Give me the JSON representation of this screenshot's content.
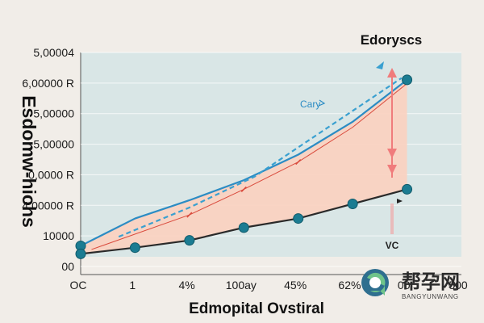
{
  "chart_data": {
    "type": "line",
    "title": "Edorysсs",
    "xlabel": "Edmopital Ovstiral",
    "ylabel": "Esdomw-hiohs",
    "x_tick_labels": [
      "OC",
      "1",
      "4%",
      "100ay",
      "45%",
      "62%",
      "00",
      "500"
    ],
    "y_tick_labels": [
      "5,00004",
      "6,00000 R",
      "5,00000",
      "5,00000",
      "0,0000 R",
      "4,00000 R",
      "10000",
      "00"
    ],
    "y_axis_ticks_printed": [
      "5,00004",
      "6,00000 R",
      "5,00000",
      "5,00000",
      "0,0000 R",
      "4,00000 R",
      "10000",
      "00"
    ],
    "series": [
      {
        "name": "Cary",
        "color": "#2b8cc4",
        "style": "solid",
        "points": [
          {
            "x": 0,
            "y": 0.3
          },
          {
            "x": 1,
            "y": 1.05
          },
          {
            "x": 2,
            "y": 1.55
          },
          {
            "x": 3,
            "y": 2.1
          },
          {
            "x": 4,
            "y": 2.8
          },
          {
            "x": 5,
            "y": 3.7
          },
          {
            "x": 6,
            "y": 4.85
          }
        ],
        "markers": [
          0,
          6
        ]
      },
      {
        "name": "",
        "color": "#3aa0d0",
        "style": "dashed",
        "points": [
          {
            "x": 0.7,
            "y": 0.55
          },
          {
            "x": 2.0,
            "y": 1.35
          },
          {
            "x": 3.2,
            "y": 2.2
          },
          {
            "x": 5.9,
            "y": 4.9
          }
        ],
        "markers": []
      },
      {
        "name": "",
        "color": "#d94a3c",
        "style": "solid-thin",
        "points": [
          {
            "x": 0.2,
            "y": 0.2
          },
          {
            "x": 2.0,
            "y": 1.15
          },
          {
            "x": 3.0,
            "y": 1.85
          },
          {
            "x": 4.0,
            "y": 2.6
          },
          {
            "x": 5.0,
            "y": 3.55
          },
          {
            "x": 6.0,
            "y": 4.75
          }
        ],
        "markers": []
      },
      {
        "name": "",
        "color": "#2a2a2a",
        "style": "solid",
        "points": [
          {
            "x": 0.0,
            "y": 0.08
          },
          {
            "x": 1.0,
            "y": 0.25
          },
          {
            "x": 2.0,
            "y": 0.45
          },
          {
            "x": 3.0,
            "y": 0.8
          },
          {
            "x": 4.0,
            "y": 1.05
          },
          {
            "x": 5.0,
            "y": 1.45
          },
          {
            "x": 6.0,
            "y": 1.85
          }
        ],
        "markers": [
          0,
          1,
          2,
          3,
          4,
          5,
          6
        ]
      }
    ],
    "xlim": [
      0,
      7
    ],
    "ylim": [
      0,
      5.6
    ],
    "fill_between": "Cary and the lower series",
    "grid": "horizontal",
    "annotations": [
      {
        "text": "Cary",
        "near": "upper line, middle"
      },
      {
        "text": "VC",
        "near": "right vertical arrow, bottom"
      }
    ]
  },
  "colors": {
    "page_background": "#f1ede8",
    "plot_background": "#d9e6e6",
    "fill_area": "#fbd0bf",
    "marker": "#1b7c92",
    "arrow": "#f07c7c",
    "grid": "#ffffff"
  },
  "watermark": {
    "text_cn": "帮孕网",
    "text_en": "BANGYUNWANG"
  }
}
